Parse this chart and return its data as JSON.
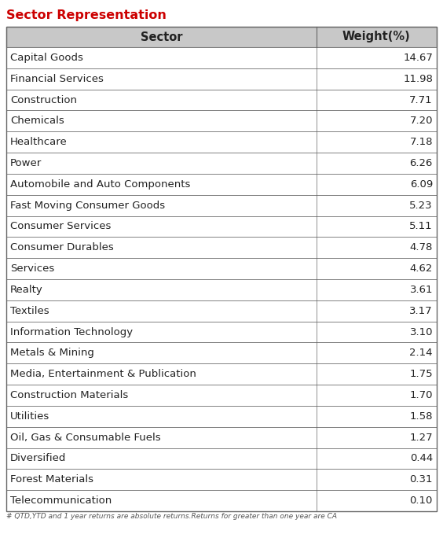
{
  "title": "Sector Representation",
  "title_color": "#cc0000",
  "col_header_sector": "Sector",
  "col_header_weight": "Weight(%)",
  "sectors": [
    "Capital Goods",
    "Financial Services",
    "Construction",
    "Chemicals",
    "Healthcare",
    "Power",
    "Automobile and Auto Components",
    "Fast Moving Consumer Goods",
    "Consumer Services",
    "Consumer Durables",
    "Services",
    "Realty",
    "Textiles",
    "Information Technology",
    "Metals & Mining",
    "Media, Entertainment & Publication",
    "Construction Materials",
    "Utilities",
    "Oil, Gas & Consumable Fuels",
    "Diversified",
    "Forest Materials",
    "Telecommunication"
  ],
  "weights": [
    14.67,
    11.98,
    7.71,
    7.2,
    7.18,
    6.26,
    6.09,
    5.23,
    5.11,
    4.78,
    4.62,
    3.61,
    3.17,
    3.1,
    2.14,
    1.75,
    1.7,
    1.58,
    1.27,
    0.44,
    0.31,
    0.1
  ],
  "header_bg": "#c8c8c8",
  "border_color": "#666666",
  "text_color": "#222222",
  "footer_text": "# QTD,YTD and 1 year returns are absolute returns.Returns for greater than one year are CA",
  "footer_color": "#555555",
  "font_size": 9.5,
  "header_font_size": 10.5,
  "title_fontsize": 11.5,
  "col_split": 0.72,
  "fig_width": 5.64,
  "fig_height": 6.84,
  "dpi": 100
}
